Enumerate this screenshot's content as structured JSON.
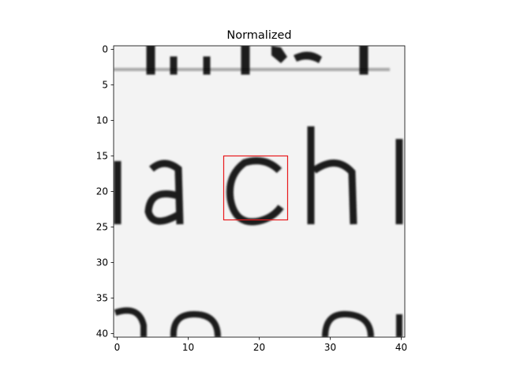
{
  "chart_data": {
    "type": "heatmap",
    "title": "Normalized",
    "xlabel": "",
    "ylabel": "",
    "xlim": [
      -0.5,
      40.5
    ],
    "ylim": [
      40.5,
      -0.5
    ],
    "x_ticks": [
      0,
      10,
      20,
      30,
      40
    ],
    "y_ticks": [
      0,
      5,
      10,
      15,
      20,
      25,
      30,
      35,
      40
    ],
    "x_tick_labels": [
      "0",
      "10",
      "20",
      "30",
      "40"
    ],
    "y_tick_labels": [
      "0",
      "5",
      "10",
      "15",
      "20",
      "25",
      "30",
      "35",
      "40"
    ],
    "colormap": "gray",
    "grid": false,
    "image_content": "grayscale crop of printed text; middle band shows the letters 'achi'",
    "highlight_box": {
      "x0": 15,
      "y0": 15,
      "x1": 24,
      "y1": 24,
      "color": "#e8191c"
    }
  }
}
